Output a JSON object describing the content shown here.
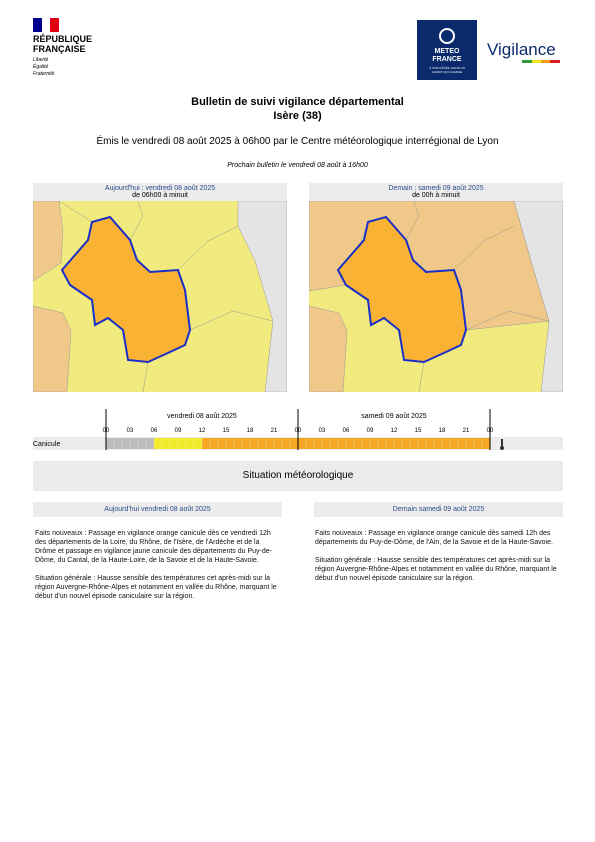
{
  "header": {
    "republic": [
      "RÉPUBLIQUE",
      "FRANÇAISE"
    ],
    "motto": [
      "Liberté",
      "Égalité",
      "Fraternité"
    ],
    "meteo_logo": [
      "METEO",
      "FRANCE"
    ],
    "meteo_tagline": "À VOS CÔTÉS, DANS UN CLIMAT QUI CHANGE",
    "vigilance": "Vigilance"
  },
  "title": "Bulletin de suivi vigilance départemental",
  "subtitle": "Isère (38)",
  "issued": "Émis le vendredi 08 août 2025 à 06h00 par le Centre météorologique interrégional de Lyon",
  "next": "Prochain bulletin le vendredi 08 août à 16h00",
  "maps": [
    {
      "title": "Aujourd'hui : vendredi 08 août 2025",
      "period": "de 06h00 à minuit"
    },
    {
      "title": "Demain : samedi 09 août 2025",
      "period": "de 00h à minuit"
    }
  ],
  "timeline": {
    "days": [
      "vendredi 08 août 2025",
      "samedi 09 août 2025"
    ],
    "hours": [
      "00",
      "03",
      "06",
      "09",
      "12",
      "15",
      "18",
      "21",
      "00",
      "03",
      "06",
      "09",
      "12",
      "15",
      "18",
      "21",
      "00"
    ],
    "row_label": "Canicule"
  },
  "section_title": "Situation météorologique",
  "columns": [
    {
      "heading": "Aujourd'hui vendredi 08 août 2025",
      "paragraphs": [
        "Faits nouveaux : Passage en vigilance orange canicule dès ce vendredi 12h des départements de la Loire, du Rhône, de l'Isère, de l'Ardèche et de la Drôme et passage en vigilance jaune canicule des départements du Puy-de-Dôme, du Cantal, de la Haute-Loire, de la Savoie et de la Haute-Savoie.",
        "Situation générale : Hausse sensible des températures cet après-midi sur la région Auvergne-Rhône-Alpes et notamment en vallée du Rhône, marquant le début d'un nouvel épisode caniculaire sur la région."
      ]
    },
    {
      "heading": "Demain samedi 09 août 2025",
      "paragraphs": [
        "Faits nouveaux : Passage en vigilance orange canicule dès samedi 12h des départements du Puy-de-Dôme, de l'Ain, de la Savoie et de la Haute-Savoie.",
        "Situation générale : Hausse sensible des températures cet après-midi sur la région Auvergne-Rhône-Alpes et notamment en vallée du Rhône, marquant le début d'un nouvel épisode caniculaire sur la région."
      ]
    }
  ]
}
